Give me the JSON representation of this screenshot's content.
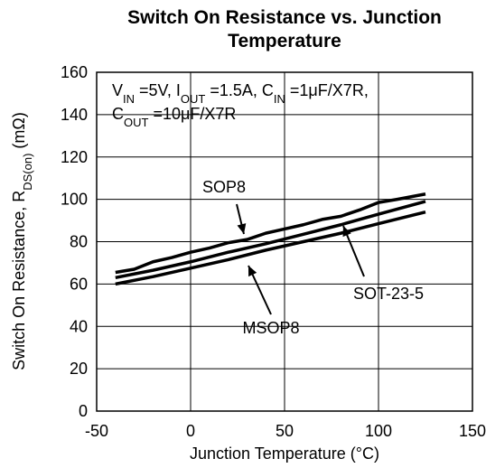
{
  "chart_data": {
    "type": "line",
    "title": [
      "Switch On Resistance vs. Junction",
      "Temperature"
    ],
    "xlabel": [
      {
        "text": "Junction Temperature (°C)"
      }
    ],
    "ylabel": [
      {
        "text": "Switch On Resistance, R"
      },
      {
        "text": "DS(on)",
        "sub": true
      },
      {
        "text": " (mΩ)"
      }
    ],
    "conditions": [
      [
        {
          "text": "V"
        },
        {
          "text": "IN",
          "sub": true
        },
        {
          "text": " =5V, I"
        },
        {
          "text": "OUT",
          "sub": true
        },
        {
          "text": " =1.5A, C"
        },
        {
          "text": "IN",
          "sub": true
        },
        {
          "text": " =1μF/X7R,"
        }
      ],
      [
        {
          "text": "C"
        },
        {
          "text": "OUT",
          "sub": true
        },
        {
          "text": " =10μF/X7R"
        }
      ]
    ],
    "xlim": [
      -50,
      150
    ],
    "xticks": [
      -50,
      0,
      50,
      100,
      150
    ],
    "ylim": [
      0,
      160
    ],
    "yticks": [
      0,
      20,
      40,
      60,
      80,
      100,
      120,
      140,
      160
    ],
    "grid": true,
    "series": [
      {
        "name": "SOP8",
        "color": "#000000",
        "x": [
          -40,
          -30,
          -20,
          -10,
          0,
          10,
          20,
          30,
          40,
          50,
          60,
          70,
          80,
          90,
          100,
          110,
          125
        ],
        "values": [
          65.5,
          67,
          70.5,
          72.5,
          75,
          77,
          79.5,
          81,
          84,
          86,
          88,
          90.5,
          92,
          95,
          98.5,
          100,
          102.5
        ]
      },
      {
        "name": "SOT-23-5",
        "color": "#000000",
        "x": [
          -40,
          -20,
          0,
          20,
          40,
          60,
          80,
          100,
          125
        ],
        "values": [
          63,
          66.5,
          70.5,
          75,
          79,
          83.5,
          88,
          93,
          99
        ]
      },
      {
        "name": "MSOP8",
        "color": "#000000",
        "x": [
          -40,
          -20,
          0,
          20,
          40,
          60,
          80,
          100,
          125
        ],
        "values": [
          60,
          63.5,
          67.5,
          71.5,
          76,
          80,
          84,
          88.5,
          94
        ]
      }
    ]
  }
}
